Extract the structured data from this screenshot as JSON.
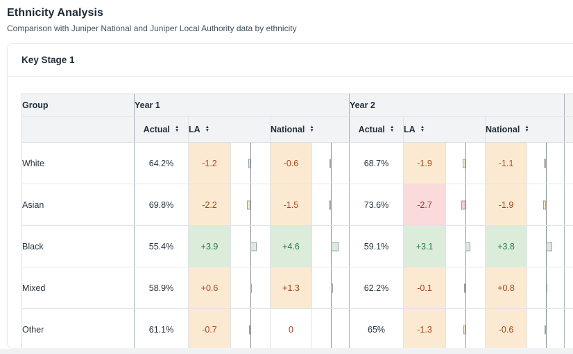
{
  "page": {
    "title": "Ethnicity Analysis",
    "subtitle": "Comparison with Juniper National and Juniper Local Authority data by ethnicity"
  },
  "card": {
    "title": "Key Stage 1"
  },
  "table": {
    "group_header": "Group",
    "year_headers": [
      "Year 1",
      "Year 2"
    ],
    "sub_headers": [
      "Actual",
      "LA",
      "National"
    ],
    "rows": [
      {
        "group": "White",
        "years": [
          {
            "actual": "64.2%",
            "la": {
              "text": "-1.2",
              "value": -1.2,
              "tone": "orange"
            },
            "national": {
              "text": "-0.6",
              "value": -0.6,
              "tone": "orange"
            }
          },
          {
            "actual": "68.7%",
            "la": {
              "text": "-1.9",
              "value": -1.9,
              "tone": "orange"
            },
            "national": {
              "text": "-1.1",
              "value": -1.1,
              "tone": "orange"
            }
          }
        ]
      },
      {
        "group": "Asian",
        "years": [
          {
            "actual": "69.8%",
            "la": {
              "text": "-2.2",
              "value": -2.2,
              "tone": "orange"
            },
            "national": {
              "text": "-1.5",
              "value": -1.5,
              "tone": "orange"
            }
          },
          {
            "actual": "73.6%",
            "la": {
              "text": "-2.7",
              "value": -2.7,
              "tone": "red"
            },
            "national": {
              "text": "-1.9",
              "value": -1.9,
              "tone": "orange"
            }
          }
        ]
      },
      {
        "group": "Black",
        "years": [
          {
            "actual": "55.4%",
            "la": {
              "text": "+3.9",
              "value": 3.9,
              "tone": "green"
            },
            "national": {
              "text": "+4.6",
              "value": 4.6,
              "tone": "green"
            }
          },
          {
            "actual": "59.1%",
            "la": {
              "text": "+3.1",
              "value": 3.1,
              "tone": "green"
            },
            "national": {
              "text": "+3.8",
              "value": 3.8,
              "tone": "green"
            }
          }
        ]
      },
      {
        "group": "Mixed",
        "years": [
          {
            "actual": "58.9%",
            "la": {
              "text": "+0.6",
              "value": 0.6,
              "tone": "orange"
            },
            "national": {
              "text": "+1.3",
              "value": 1.3,
              "tone": "orange"
            }
          },
          {
            "actual": "62.2%",
            "la": {
              "text": "-0.1",
              "value": -0.1,
              "tone": "orange"
            },
            "national": {
              "text": "+0.8",
              "value": 0.8,
              "tone": "orange"
            }
          }
        ]
      },
      {
        "group": "Other",
        "years": [
          {
            "actual": "61.1%",
            "la": {
              "text": "-0.7",
              "value": -0.7,
              "tone": "orange"
            },
            "national": {
              "text": "0",
              "value": 0,
              "tone": "zero"
            }
          },
          {
            "actual": "65%",
            "la": {
              "text": "-1.3",
              "value": -1.3,
              "tone": "orange"
            },
            "national": {
              "text": "-0.6",
              "value": -0.6,
              "tone": "orange"
            }
          }
        ]
      }
    ]
  },
  "colors": {
    "orange_bg": "#fbead1",
    "orange_text": "#a8431a",
    "green_bg": "#dcecdb",
    "green_text": "#217a46",
    "red_bg": "#fadada",
    "red_text": "#ad2b2b",
    "header_bg": "#f1f3f5",
    "axis_line": "#8d939b"
  },
  "icons": {
    "sort_up": "▲",
    "sort_down": "▼"
  }
}
